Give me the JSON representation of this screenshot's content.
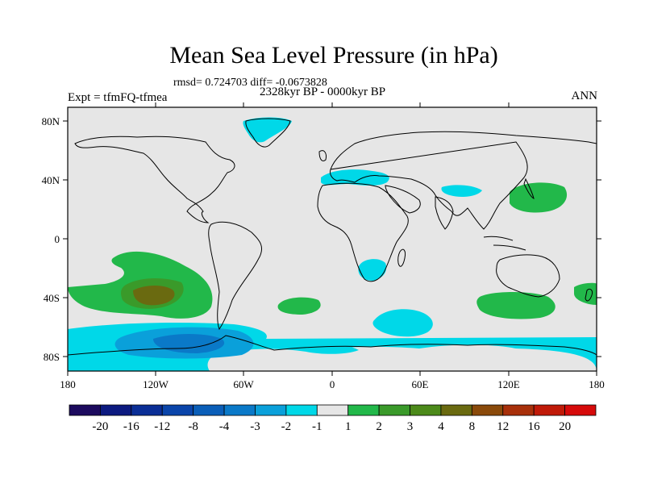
{
  "header": {
    "title": "Mean Sea Level Pressure (in hPa)",
    "stats": "rmsd= 0.724703 diff= -0.0673828",
    "period": "2328kyr BP - 0000kyr BP",
    "experiment": "Expt = tfmFQ-tfmea",
    "season": "ANN"
  },
  "map": {
    "lat_labels": [
      "80N",
      "40N",
      "0",
      "40S",
      "80S"
    ],
    "lon_labels": [
      "180",
      "120W",
      "60W",
      "0",
      "60E",
      "120E",
      "180"
    ],
    "background_color": "#e6e6e6"
  },
  "colorbar": {
    "labels": [
      "-20",
      "-16",
      "-12",
      "-8",
      "-4",
      "-3",
      "-2",
      "-1",
      "1",
      "2",
      "3",
      "4",
      "8",
      "12",
      "16",
      "20"
    ],
    "colors": [
      "#1c0a5e",
      "#0c1a80",
      "#0a2e96",
      "#0a45aa",
      "#0a5eb8",
      "#0a79c8",
      "#0aa0da",
      "#00d8e8",
      "#e6e6e6",
      "#22b84a",
      "#3a9a2a",
      "#4c8a1a",
      "#6a6a10",
      "#8a4a0a",
      "#a8300a",
      "#c01a08",
      "#d60a0a"
    ]
  }
}
